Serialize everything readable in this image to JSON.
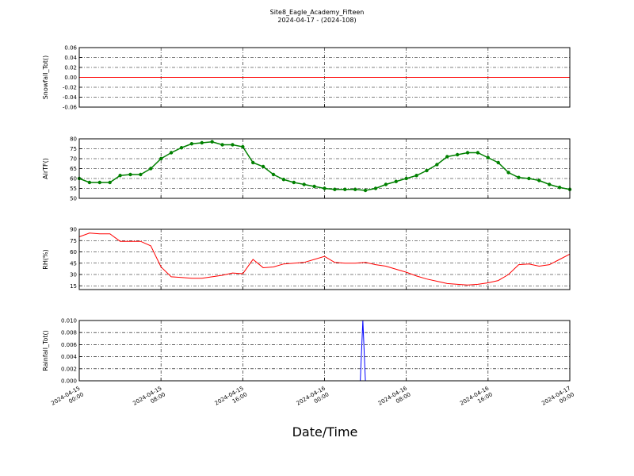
{
  "title": "Site8_Eagle_Academy_Fifteen",
  "subtitle": "2024-04-17 - (2024-108)",
  "xlabel": "Date/Time",
  "chart_data": [
    {
      "type": "line",
      "ylabel": "Snowfall_Tot()",
      "color": "#ff0000",
      "marker": false,
      "grid": true,
      "x": [
        "2024-04-15 00:00",
        "2024-04-17 00:00"
      ],
      "values": [
        0,
        0
      ],
      "xlim": [
        "2024-04-15 00:00",
        "2024-04-17 00:00"
      ],
      "xticks": [
        "2024-04-15 00:00",
        "2024-04-15 08:00",
        "2024-04-15 16:00",
        "2024-04-16 00:00",
        "2024-04-16 08:00",
        "2024-04-16 16:00",
        "2024-04-17 00:00"
      ],
      "ylim": [
        -0.06,
        0.06
      ],
      "yticks": [
        -0.06,
        -0.04,
        -0.02,
        {
          "value": 0,
          "label": "0.00"
        },
        0.02,
        0.04,
        0.06
      ]
    },
    {
      "type": "line",
      "ylabel": "AirTF()",
      "color": "#008000",
      "marker": true,
      "grid": true,
      "x": [
        "2024-04-15 00:00",
        "2024-04-15 01:00",
        "2024-04-15 02:00",
        "2024-04-15 03:00",
        "2024-04-15 04:00",
        "2024-04-15 05:00",
        "2024-04-15 06:00",
        "2024-04-15 07:00",
        "2024-04-15 08:00",
        "2024-04-15 09:00",
        "2024-04-15 10:00",
        "2024-04-15 11:00",
        "2024-04-15 12:00",
        "2024-04-15 13:00",
        "2024-04-15 14:00",
        "2024-04-15 15:00",
        "2024-04-15 16:00",
        "2024-04-15 17:00",
        "2024-04-15 18:00",
        "2024-04-15 19:00",
        "2024-04-15 20:00",
        "2024-04-15 21:00",
        "2024-04-15 22:00",
        "2024-04-15 23:00",
        "2024-04-16 00:00",
        "2024-04-16 01:00",
        "2024-04-16 02:00",
        "2024-04-16 03:00",
        "2024-04-16 04:00",
        "2024-04-16 05:00",
        "2024-04-16 06:00",
        "2024-04-16 07:00",
        "2024-04-16 08:00",
        "2024-04-16 09:00",
        "2024-04-16 10:00",
        "2024-04-16 11:00",
        "2024-04-16 12:00",
        "2024-04-16 13:00",
        "2024-04-16 14:00",
        "2024-04-16 15:00",
        "2024-04-16 16:00",
        "2024-04-16 17:00",
        "2024-04-16 18:00",
        "2024-04-16 19:00",
        "2024-04-16 20:00",
        "2024-04-16 21:00",
        "2024-04-16 22:00",
        "2024-04-16 23:00",
        "2024-04-17 00:00"
      ],
      "values": [
        60,
        58,
        58,
        58,
        61.5,
        62,
        62,
        65,
        70,
        73,
        75.5,
        77.5,
        78,
        78.5,
        77,
        77,
        76,
        68,
        66,
        62,
        59.5,
        58,
        57,
        56,
        55,
        54.5,
        54.5,
        54.5,
        54,
        55,
        57,
        58.5,
        60,
        61.5,
        64,
        67,
        71,
        72,
        73,
        73,
        70.5,
        68,
        63,
        60.5,
        60,
        59,
        57,
        55.5,
        54.5
      ],
      "xlim": [
        "2024-04-15 00:00",
        "2024-04-17 00:00"
      ],
      "xticks": [
        "2024-04-15 00:00",
        "2024-04-15 08:00",
        "2024-04-15 16:00",
        "2024-04-16 00:00",
        "2024-04-16 08:00",
        "2024-04-16 16:00",
        "2024-04-17 00:00"
      ],
      "ylim": [
        50,
        80
      ],
      "yticks": [
        50,
        55,
        60,
        65,
        70,
        75,
        80
      ]
    },
    {
      "type": "line",
      "ylabel": "RH(%)",
      "color": "#ff0000",
      "marker": false,
      "grid": true,
      "x": [
        "2024-04-15 00:00",
        "2024-04-15 01:00",
        "2024-04-15 02:00",
        "2024-04-15 03:00",
        "2024-04-15 04:00",
        "2024-04-15 05:00",
        "2024-04-15 06:00",
        "2024-04-15 07:00",
        "2024-04-15 08:00",
        "2024-04-15 09:00",
        "2024-04-15 10:00",
        "2024-04-15 11:00",
        "2024-04-15 12:00",
        "2024-04-15 13:00",
        "2024-04-15 14:00",
        "2024-04-15 15:00",
        "2024-04-15 16:00",
        "2024-04-15 17:00",
        "2024-04-15 18:00",
        "2024-04-15 19:00",
        "2024-04-15 20:00",
        "2024-04-15 21:00",
        "2024-04-15 22:00",
        "2024-04-15 23:00",
        "2024-04-16 00:00",
        "2024-04-16 01:00",
        "2024-04-16 02:00",
        "2024-04-16 03:00",
        "2024-04-16 04:00",
        "2024-04-16 05:00",
        "2024-04-16 06:00",
        "2024-04-16 07:00",
        "2024-04-16 08:00",
        "2024-04-16 09:00",
        "2024-04-16 10:00",
        "2024-04-16 11:00",
        "2024-04-16 12:00",
        "2024-04-16 13:00",
        "2024-04-16 14:00",
        "2024-04-16 15:00",
        "2024-04-16 16:00",
        "2024-04-16 17:00",
        "2024-04-16 18:00",
        "2024-04-16 19:00",
        "2024-04-16 20:00",
        "2024-04-16 21:00",
        "2024-04-16 22:00",
        "2024-04-16 23:00",
        "2024-04-17 00:00"
      ],
      "values": [
        80,
        85,
        84,
        84,
        74,
        74,
        74,
        68,
        40,
        27,
        26,
        25,
        25,
        27,
        29,
        32,
        31,
        50,
        39,
        40,
        44,
        45,
        46,
        50,
        54,
        46,
        45,
        45,
        46,
        43,
        41,
        37,
        33,
        28,
        24,
        21,
        18,
        17,
        16,
        17,
        19,
        22,
        30,
        43,
        44,
        41,
        43,
        50,
        57
      ],
      "xlim": [
        "2024-04-15 00:00",
        "2024-04-17 00:00"
      ],
      "xticks": [
        "2024-04-15 00:00",
        "2024-04-15 08:00",
        "2024-04-15 16:00",
        "2024-04-16 00:00",
        "2024-04-16 08:00",
        "2024-04-16 16:00",
        "2024-04-17 00:00"
      ],
      "ylim": [
        10,
        90
      ],
      "yticks": [
        15,
        30,
        45,
        60,
        75,
        90
      ]
    },
    {
      "type": "line",
      "ylabel": "Rainfall_Tot()",
      "color": "#0000ff",
      "marker": false,
      "grid": true,
      "x": [
        "2024-04-15 00:00",
        "2024-04-16 03:30",
        "2024-04-16 03:45",
        "2024-04-16 04:00",
        "2024-04-17 00:00"
      ],
      "values": [
        0,
        0,
        0.01,
        0,
        0
      ],
      "xlim": [
        "2024-04-15 00:00",
        "2024-04-17 00:00"
      ],
      "xticks": [
        "2024-04-15 00:00",
        "2024-04-15 08:00",
        "2024-04-15 16:00",
        "2024-04-16 00:00",
        "2024-04-16 08:00",
        "2024-04-16 16:00",
        "2024-04-17 00:00"
      ],
      "ylim": [
        0,
        0.01
      ],
      "yticks": [
        {
          "value": 0,
          "label": "0.000"
        },
        {
          "value": 0.002,
          "label": "0.002"
        },
        {
          "value": 0.004,
          "label": "0.004"
        },
        {
          "value": 0.006,
          "label": "0.006"
        },
        {
          "value": 0.008,
          "label": "0.008"
        },
        {
          "value": 0.01,
          "label": "0.010"
        }
      ]
    }
  ]
}
